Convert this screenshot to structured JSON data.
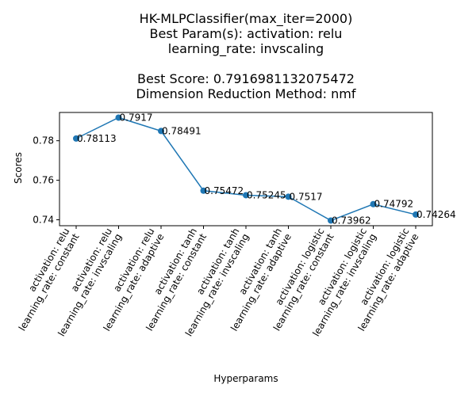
{
  "chart_data": {
    "type": "line",
    "title_lines": [
      "HK-MLPClassifier(max_iter=2000)",
      "Best Param(s): activation: relu",
      "learning_rate: invscaling",
      "",
      "Best Score: 0.7916981132075472",
      "Dimension Reduction Method: nmf"
    ],
    "xlabel": "Hyperparams",
    "ylabel": "Scores",
    "categories": [
      [
        "activation: relu",
        "learning_rate: constant"
      ],
      [
        "activation: relu",
        "learning_rate: invscaling"
      ],
      [
        "activation: relu",
        "learning_rate: adaptive"
      ],
      [
        "activation: tanh",
        "learning_rate: constant"
      ],
      [
        "activation: tanh",
        "learning_rate: invscaling"
      ],
      [
        "activation: tanh",
        "learning_rate: adaptive"
      ],
      [
        "activation: logistic",
        "learning_rate: constant"
      ],
      [
        "activation: logistic",
        "learning_rate: invscaling"
      ],
      [
        "activation: logistic",
        "learning_rate: adaptive"
      ]
    ],
    "values": [
      0.78113,
      0.7917,
      0.78491,
      0.75472,
      0.75245,
      0.7517,
      0.73962,
      0.74792,
      0.74264
    ],
    "data_labels": [
      "0.78113",
      "0.7917",
      "0.78491",
      "0.75472",
      "0.75245",
      "0.7517",
      "0.73962",
      "0.74792",
      "0.74264"
    ],
    "yticks": [
      0.74,
      0.76,
      0.78
    ],
    "ytick_labels": [
      "0.74",
      "0.76",
      "0.78"
    ],
    "ylim": [
      0.737,
      0.7943
    ],
    "grid": false,
    "line_color": "#1f77b4"
  }
}
